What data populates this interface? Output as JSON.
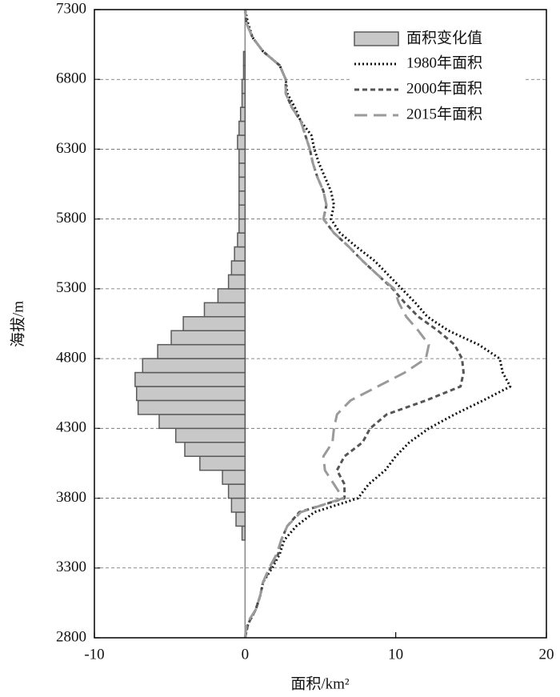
{
  "chart_data": {
    "type": "combo",
    "ylabel": "海拔/m",
    "xlabel": "面积/km²",
    "xlim": [
      -10,
      20
    ],
    "xticks": [
      -10,
      0,
      10,
      20
    ],
    "ylim": [
      2800,
      7300
    ],
    "yticks": [
      2800,
      3300,
      3800,
      4300,
      4800,
      5300,
      5800,
      6300,
      6800,
      7300
    ],
    "grid": true,
    "legend": "upper right",
    "bars": {
      "name": "面积变化值",
      "color": "#c8c8c8",
      "edge_color": "#5a5a5a",
      "bins": [
        3500,
        3600,
        3700,
        3800,
        3900,
        4000,
        4100,
        4200,
        4300,
        4400,
        4500,
        4600,
        4700,
        4800,
        4900,
        5000,
        5100,
        5200,
        5300,
        5400,
        5500,
        5600,
        5700,
        5800,
        5900,
        6000,
        6100,
        6200,
        6300,
        6400,
        6500,
        6600,
        6700,
        6800,
        6900,
        7000
      ],
      "values": [
        -0.2,
        -0.6,
        -0.9,
        -1.1,
        -1.5,
        -3.0,
        -4.0,
        -4.6,
        -5.7,
        -7.1,
        -7.2,
        -7.3,
        -6.8,
        -5.8,
        -4.9,
        -4.1,
        -2.7,
        -1.8,
        -1.1,
        -0.9,
        -0.7,
        -0.5,
        -0.4,
        -0.4,
        -0.4,
        -0.4,
        -0.4,
        -0.4,
        -0.5,
        -0.4,
        -0.3,
        -0.2,
        -0.2,
        -0.1,
        -0.1
      ]
    },
    "y": [
      2800,
      2900,
      3000,
      3100,
      3200,
      3300,
      3400,
      3500,
      3600,
      3700,
      3800,
      3900,
      4000,
      4100,
      4200,
      4300,
      4400,
      4500,
      4600,
      4700,
      4800,
      4900,
      5000,
      5100,
      5200,
      5300,
      5400,
      5500,
      5600,
      5700,
      5800,
      5900,
      6000,
      6100,
      6200,
      6300,
      6400,
      6500,
      6600,
      6700,
      6800,
      6900,
      7000,
      7100,
      7200,
      7300
    ],
    "series": [
      {
        "name": "1980年面积",
        "color": "#111111",
        "linestyle": "dotted",
        "values": [
          0,
          0.2,
          0.7,
          1.0,
          1.2,
          1.8,
          2.3,
          2.6,
          3.4,
          4.6,
          7.5,
          8.2,
          9.3,
          10.0,
          10.9,
          12.2,
          13.9,
          15.8,
          17.6,
          17.1,
          16.9,
          15.5,
          13.5,
          12.1,
          11.3,
          10.4,
          9.5,
          8.6,
          7.4,
          6.3,
          5.7,
          5.9,
          5.7,
          5.3,
          4.9,
          4.6,
          4.4,
          3.7,
          3.3,
          2.8,
          2.7,
          2.3,
          1.2,
          0.5,
          0.2,
          0
        ]
      },
      {
        "name": "2000年面积",
        "color": "#555555",
        "linestyle": "dashed",
        "values": [
          0,
          0.2,
          0.7,
          1.0,
          1.2,
          1.7,
          2.2,
          2.4,
          2.8,
          3.6,
          6.6,
          6.6,
          6.1,
          6.6,
          7.8,
          8.3,
          9.4,
          12.0,
          14.3,
          14.5,
          14.4,
          13.9,
          12.8,
          11.5,
          10.6,
          9.8,
          8.8,
          7.8,
          6.9,
          5.9,
          5.2,
          5.4,
          5.2,
          4.8,
          4.5,
          4.3,
          4.0,
          3.7,
          3.1,
          2.7,
          2.7,
          2.3,
          1.2,
          0.5,
          0.1,
          0
        ]
      },
      {
        "name": "2015年面积",
        "color": "#9a9a9a",
        "linestyle": "long-dashed",
        "values": [
          0,
          0.1,
          0.7,
          1.0,
          1.2,
          1.6,
          2.1,
          2.4,
          2.8,
          3.7,
          6.5,
          5.9,
          5.3,
          5.2,
          5.8,
          5.9,
          6.1,
          7.0,
          8.8,
          10.6,
          12.0,
          12.2,
          11.5,
          10.7,
          10.2,
          9.9,
          8.8,
          7.8,
          6.9,
          5.9,
          5.2,
          5.4,
          5.2,
          4.8,
          4.5,
          4.3,
          4.0,
          3.7,
          3.1,
          2.7,
          2.7,
          2.3,
          1.2,
          0.5,
          0.1,
          0
        ]
      }
    ]
  }
}
